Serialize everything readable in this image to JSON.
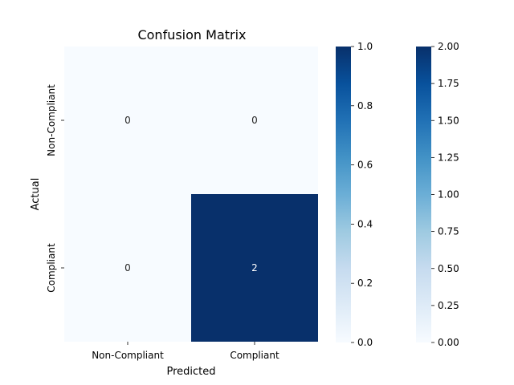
{
  "chart_data": {
    "type": "heatmap",
    "title": "Confusion Matrix",
    "xlabel": "Predicted",
    "ylabel": "Actual",
    "x_categories": [
      "Non-Compliant",
      "Compliant"
    ],
    "y_categories": [
      "Non-Compliant",
      "Compliant"
    ],
    "values": [
      [
        0,
        0
      ],
      [
        0,
        2
      ]
    ],
    "cell_annotations": [
      [
        "0",
        "0"
      ],
      [
        "0",
        "2"
      ]
    ],
    "cmap": "Blues",
    "colorbars": [
      {
        "range": [
          0.0,
          1.0
        ],
        "ticks": [
          "0.0",
          "0.2",
          "0.4",
          "0.6",
          "0.8",
          "1.0"
        ]
      },
      {
        "range": [
          0.0,
          2.0
        ],
        "ticks": [
          "0.00",
          "0.25",
          "0.50",
          "0.75",
          "1.00",
          "1.25",
          "1.50",
          "1.75",
          "2.00"
        ]
      }
    ],
    "colors": {
      "low": "#f7fbff",
      "high": "#08306b"
    }
  }
}
